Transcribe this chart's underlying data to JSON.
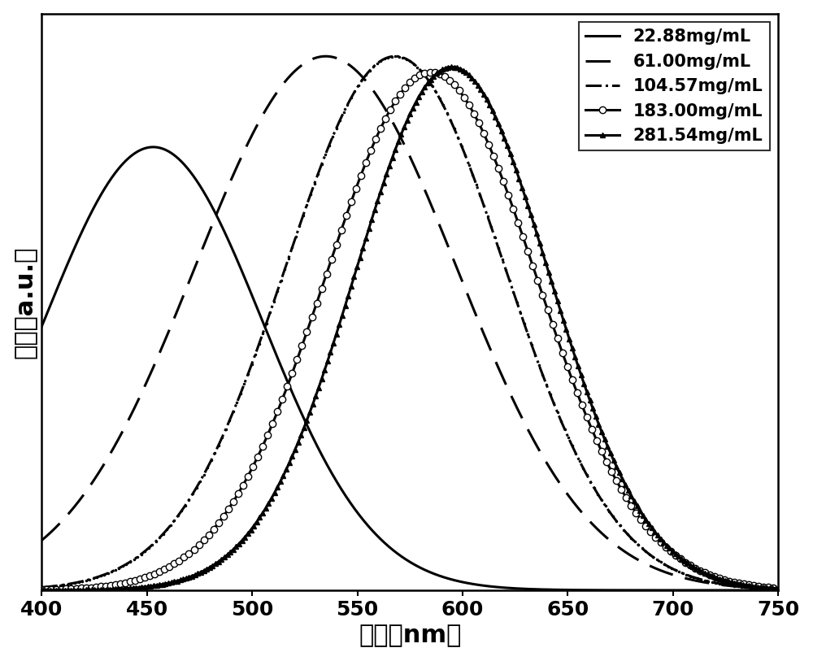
{
  "curves": [
    {
      "label": "22.88mg/mL",
      "linestyle": "-",
      "marker": null,
      "peak": 453,
      "sigma": 52,
      "amplitude": 0.83,
      "linewidth": 2.2
    },
    {
      "label": "61.00mg/mL",
      "linestyle": "--",
      "marker": null,
      "peak": 535,
      "sigma": 62,
      "amplitude": 1.0,
      "linewidth": 2.2,
      "dashes": [
        10,
        5
      ]
    },
    {
      "label": "104.57mg/mL",
      "linestyle": "-.",
      "marker": ".",
      "peak": 568,
      "sigma": 52,
      "amplitude": 1.0,
      "linewidth": 2.2,
      "markersize": 3,
      "markevery": 15,
      "markerfacecolor": "black",
      "markeredgecolor": "black"
    },
    {
      "label": "183.00mg/mL",
      "linestyle": "-",
      "marker": "o",
      "peak": 585,
      "sigma": 50,
      "amplitude": 0.97,
      "linewidth": 2.2,
      "markersize": 6,
      "markevery": 20,
      "markerfacecolor": "white",
      "markeredgecolor": "black"
    },
    {
      "label": "281.54mg/mL",
      "linestyle": "-",
      "marker": "^",
      "peak": 595,
      "sigma": 46,
      "amplitude": 0.98,
      "linewidth": 2.2,
      "markersize": 5,
      "markevery": 12,
      "markerfacecolor": "black",
      "markeredgecolor": "black"
    }
  ],
  "xmin": 400,
  "xmax": 750,
  "ymin": 0,
  "ymax": 1.08,
  "xlabel": "波长（nm）",
  "ylabel": "强度（a.u.）",
  "xlabel_fontsize": 22,
  "ylabel_fontsize": 22,
  "tick_fontsize": 18,
  "legend_fontsize": 15,
  "linecolor": "black",
  "background_color": "white",
  "xticks": [
    400,
    450,
    500,
    550,
    600,
    650,
    700,
    750
  ],
  "legend_loc": "upper right",
  "figsize": [
    10.0,
    8.13
  ],
  "dpi": 100
}
